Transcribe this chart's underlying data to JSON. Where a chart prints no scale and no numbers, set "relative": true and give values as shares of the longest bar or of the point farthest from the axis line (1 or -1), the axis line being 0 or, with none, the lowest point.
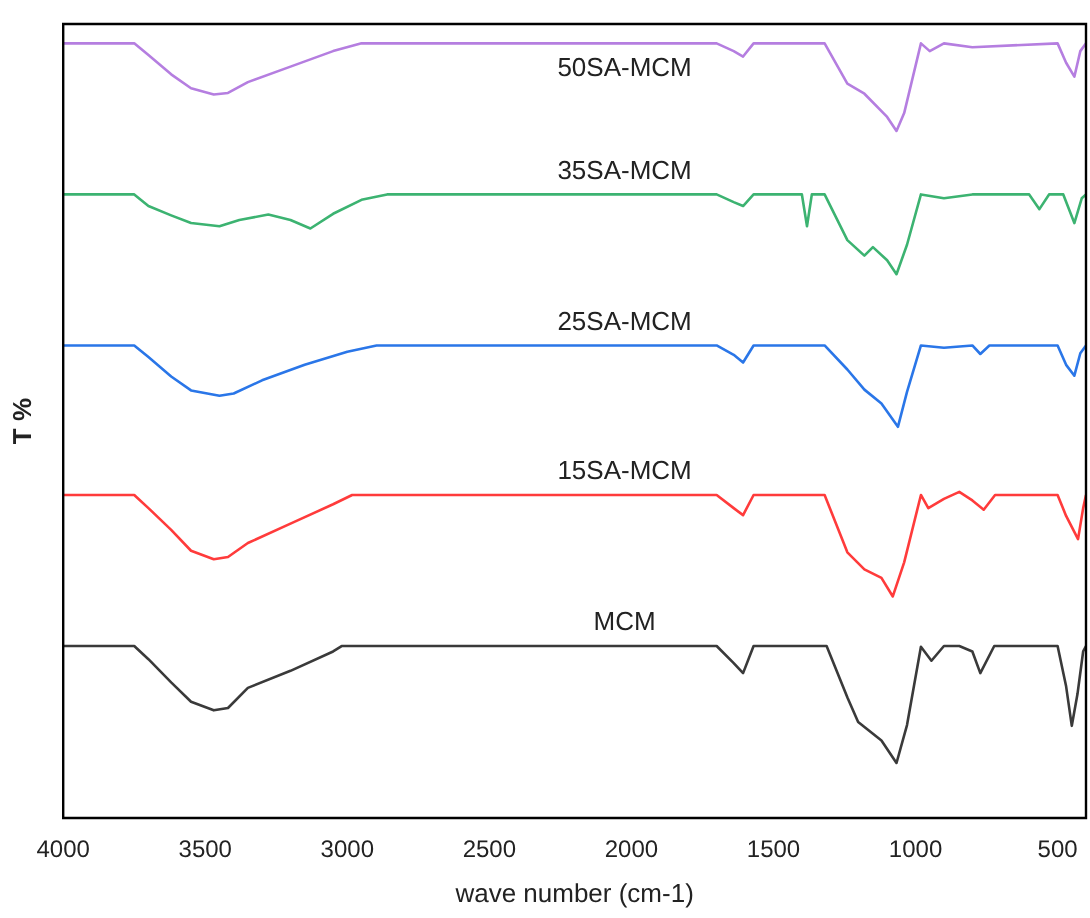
{
  "chart_data": {
    "type": "line",
    "xlabel": "wave number (cm-1)",
    "ylabel": "T %",
    "relative": true,
    "xlim": [
      4000,
      400
    ],
    "xticks": [
      4000,
      3500,
      3000,
      2500,
      2000,
      1500,
      1000,
      500
    ],
    "tick_labels": "x",
    "grid": false,
    "legend": false,
    "marker": "none",
    "line_style": "solid",
    "series": [
      {
        "name": "50SA-MCM",
        "color": "#b57ee0",
        "x": [
          4000,
          3750,
          3700,
          3620,
          3550,
          3470,
          3420,
          3350,
          3200,
          3050,
          2950,
          1700,
          1640,
          1607,
          1570,
          1320,
          1240,
          1180,
          1100,
          1067,
          1040,
          981,
          950,
          900,
          800,
          500,
          470,
          441,
          420,
          400
        ],
        "values": [
          1.0,
          1.0,
          0.985,
          0.96,
          0.942,
          0.934,
          0.936,
          0.95,
          0.97,
          0.99,
          1.0,
          1.0,
          0.99,
          0.983,
          1.0,
          1.0,
          0.948,
          0.935,
          0.905,
          0.887,
          0.91,
          1.0,
          0.99,
          1.0,
          0.995,
          1.0,
          0.975,
          0.957,
          0.99,
          1.0
        ]
      },
      {
        "name": "35SA-MCM",
        "color": "#3cb371",
        "x": [
          4000,
          3750,
          3700,
          3620,
          3550,
          3450,
          3380,
          3278,
          3200,
          3130,
          3050,
          2950,
          2860,
          1700,
          1640,
          1607,
          1570,
          1400,
          1382,
          1365,
          1350,
          1320,
          1240,
          1180,
          1150,
          1100,
          1067,
          1030,
          981,
          900,
          800,
          600,
          564,
          530,
          480,
          441,
          415,
          400
        ],
        "values": [
          0.805,
          0.805,
          0.79,
          0.778,
          0.768,
          0.764,
          0.772,
          0.779,
          0.772,
          0.761,
          0.78,
          0.798,
          0.805,
          0.805,
          0.795,
          0.79,
          0.805,
          0.805,
          0.764,
          0.805,
          0.805,
          0.805,
          0.746,
          0.726,
          0.737,
          0.72,
          0.702,
          0.74,
          0.805,
          0.8,
          0.805,
          0.805,
          0.786,
          0.805,
          0.805,
          0.768,
          0.8,
          0.805
        ]
      },
      {
        "name": "25SA-MCM",
        "color": "#2a76e8",
        "x": [
          4000,
          3750,
          3700,
          3620,
          3550,
          3450,
          3400,
          3300,
          3150,
          3000,
          2897,
          1700,
          1640,
          1607,
          1570,
          1320,
          1240,
          1180,
          1120,
          1062,
          1030,
          981,
          900,
          800,
          772,
          740,
          500,
          470,
          441,
          420,
          400
        ],
        "values": [
          0.61,
          0.61,
          0.595,
          0.57,
          0.552,
          0.545,
          0.548,
          0.565,
          0.585,
          0.602,
          0.61,
          0.61,
          0.598,
          0.588,
          0.61,
          0.61,
          0.579,
          0.553,
          0.535,
          0.505,
          0.55,
          0.61,
          0.607,
          0.61,
          0.599,
          0.61,
          0.61,
          0.585,
          0.571,
          0.6,
          0.61
        ]
      },
      {
        "name": "15SA-MCM",
        "color": "#ff3b3b",
        "x": [
          4000,
          3750,
          3700,
          3620,
          3550,
          3470,
          3420,
          3350,
          3200,
          3050,
          2983,
          1700,
          1640,
          1607,
          1570,
          1320,
          1240,
          1180,
          1120,
          1080,
          1040,
          981,
          955,
          900,
          846,
          800,
          760,
          720,
          500,
          470,
          428,
          410,
          400
        ],
        "values": [
          0.417,
          0.417,
          0.4,
          0.372,
          0.345,
          0.334,
          0.337,
          0.355,
          0.38,
          0.405,
          0.417,
          0.417,
          0.4,
          0.391,
          0.417,
          0.417,
          0.343,
          0.321,
          0.31,
          0.286,
          0.33,
          0.417,
          0.4,
          0.412,
          0.421,
          0.41,
          0.398,
          0.417,
          0.417,
          0.39,
          0.36,
          0.4,
          0.417
        ]
      },
      {
        "name": "MCM",
        "color": "#3a3a3a",
        "x": [
          4000,
          3750,
          3700,
          3620,
          3550,
          3470,
          3420,
          3350,
          3200,
          3050,
          3020,
          1700,
          1640,
          1607,
          1570,
          1313,
          1239,
          1202,
          1120,
          1067,
          1030,
          981,
          944,
          900,
          846,
          800,
          772,
          723,
          500,
          470,
          450,
          430,
          410,
          400
        ],
        "values": [
          0.222,
          0.222,
          0.205,
          0.175,
          0.15,
          0.139,
          0.142,
          0.168,
          0.19,
          0.215,
          0.222,
          0.222,
          0.2,
          0.187,
          0.222,
          0.222,
          0.155,
          0.124,
          0.1,
          0.071,
          0.12,
          0.221,
          0.203,
          0.222,
          0.222,
          0.215,
          0.187,
          0.222,
          0.222,
          0.17,
          0.119,
          0.16,
          0.215,
          0.222
        ]
      }
    ]
  }
}
